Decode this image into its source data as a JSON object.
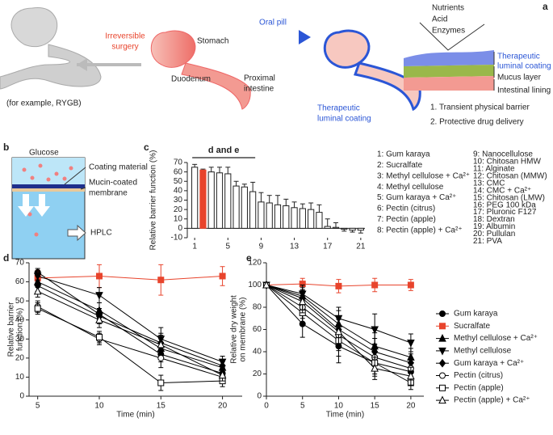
{
  "panel_a": {
    "label": "a",
    "irreversible_surgery": [
      "Irreversible",
      "surgery"
    ],
    "stomach": "Stomach",
    "oral_pill": "Oral pill",
    "duodenum": "Duodenum",
    "proximal_intestine": [
      "Proximal",
      "intestine"
    ],
    "example": "(for example, RYGB)",
    "coating_center": [
      "Therapeutic",
      "luminal coating"
    ],
    "nutrients": "Nutrients",
    "acid": "Acid",
    "enzymes": "Enzymes",
    "coating_right": [
      "Therapeutic",
      "luminal coating"
    ],
    "mucus": "Mucus layer",
    "lining": "Intestinal lining",
    "point1": "1. Transient physical barrier",
    "point2": "2. Protective drug delivery"
  },
  "panel_b": {
    "label": "b",
    "glucose": "Glucose",
    "coating": "Coating material",
    "membrane": [
      "Mucin-coated",
      "membrane"
    ],
    "hplc": "HPLC"
  },
  "chart_data": [
    {
      "type": "bar",
      "label": "c",
      "ylabel": "Relative barrier function (%)",
      "annotation": "d and e",
      "categories": [
        1,
        null,
        null,
        null,
        5,
        null,
        null,
        null,
        9,
        null,
        null,
        null,
        13,
        null,
        null,
        null,
        17,
        null,
        null,
        null,
        21
      ],
      "values": [
        65,
        62,
        60,
        59,
        58,
        45,
        44,
        39,
        28,
        27,
        25,
        24,
        22,
        21,
        20,
        17,
        2,
        1,
        -1,
        -2,
        -2
      ],
      "errors": [
        3,
        1,
        5,
        6,
        7,
        5,
        3,
        10,
        10,
        8,
        10,
        7,
        6,
        5,
        7,
        8,
        8,
        5,
        2,
        2,
        3
      ],
      "colors": [
        "#ffffff",
        "#e8442c",
        "#ffffff",
        "#ffffff",
        "#ffffff",
        "#ffffff",
        "#ffffff",
        "#ffffff",
        "#ffffff",
        "#ffffff",
        "#ffffff",
        "#ffffff",
        "#ffffff",
        "#ffffff",
        "#ffffff",
        "#ffffff",
        "#ffffff",
        "#ffffff",
        "#ffffff",
        "#ffffff",
        "#ffffff"
      ],
      "ylim": [
        -10,
        70
      ],
      "yticks": [
        -10,
        0,
        10,
        20,
        30,
        40,
        50,
        60,
        70
      ],
      "legend_items": [
        "1: Gum karaya",
        "2: Sucralfate",
        "3: Methyl cellulose + Ca²⁺",
        "4: Methyl cellulose",
        "5: Gum karaya + Ca²⁺",
        "6: Pectin (citrus)",
        "7: Pectin (apple)",
        "8: Pectin (apple) + Ca²⁺",
        "9: Nanocellulose",
        "10: Chitosan HMW",
        "11: Alginate",
        "12: Chitosan (MMW)",
        "13: CMC",
        "14: CMC + Ca²⁺",
        "15: Chitosan (LMW)",
        "16: PEG 100 kDa",
        "17: Pluronic F127",
        "18: Dextran",
        "19: Albumin",
        "20: Pullulan",
        "21: PVA"
      ]
    },
    {
      "type": "line",
      "label": "d",
      "ylabel": [
        "Relative barrier",
        "function (%)"
      ],
      "xlabel": "Time (min)",
      "x": [
        5,
        10,
        15,
        20
      ],
      "xlim": [
        4.3,
        21.6
      ],
      "xticks": [
        5,
        10,
        15,
        20
      ],
      "ylim": [
        0,
        70
      ],
      "yticks": [
        0,
        10,
        20,
        30,
        40,
        50,
        60,
        70
      ],
      "series": [
        {
          "color": "#000000",
          "marker": "circle",
          "filled": true,
          "values": [
            65,
            43,
            22,
            12
          ],
          "errors": [
            2,
            3,
            4,
            3
          ]
        },
        {
          "color": "#e8442c",
          "marker": "square",
          "filled": true,
          "values": [
            62,
            63,
            61,
            63
          ],
          "errors": [
            4,
            6,
            8,
            5
          ]
        },
        {
          "color": "#000000",
          "marker": "triangle",
          "filled": true,
          "values": [
            60,
            45,
            25,
            15
          ],
          "errors": [
            3,
            4,
            5,
            3
          ]
        },
        {
          "color": "#000000",
          "marker": "triangle-down",
          "filled": true,
          "values": [
            63,
            53,
            30,
            18
          ],
          "errors": [
            3,
            4,
            6,
            3
          ]
        },
        {
          "color": "#000000",
          "marker": "diamond",
          "filled": true,
          "values": [
            58,
            42,
            28,
            16
          ],
          "errors": [
            3,
            4,
            5,
            3
          ]
        },
        {
          "color": "#000000",
          "marker": "circle",
          "filled": false,
          "values": [
            47,
            30,
            20,
            10
          ],
          "errors": [
            3,
            3,
            5,
            3
          ]
        },
        {
          "color": "#000000",
          "marker": "square",
          "filled": false,
          "values": [
            46,
            31,
            7,
            8
          ],
          "errors": [
            3,
            3,
            4,
            3
          ]
        },
        {
          "color": "#000000",
          "marker": "triangle",
          "filled": false,
          "values": [
            55,
            40,
            27,
            11
          ],
          "errors": [
            3,
            4,
            5,
            3
          ]
        }
      ]
    },
    {
      "type": "line",
      "label": "e",
      "ylabel": [
        "Relative dry weight",
        "on membrane (%)"
      ],
      "xlabel": "Time (min)",
      "x": [
        0,
        5,
        10,
        15,
        20
      ],
      "xlim": [
        0,
        21.8
      ],
      "xticks": [
        0,
        5,
        10,
        15,
        20
      ],
      "ylim": [
        0,
        120
      ],
      "yticks": [
        0,
        20,
        40,
        60,
        80,
        100,
        120
      ],
      "series": [
        {
          "name": "Gum karaya",
          "color": "#000000",
          "marker": "circle",
          "filled": true,
          "values": [
            100,
            65,
            45,
            30,
            22
          ],
          "errors": [
            2,
            12,
            15,
            12,
            8
          ]
        },
        {
          "name": "Sucralfate",
          "color": "#e8442c",
          "marker": "square",
          "filled": true,
          "values": [
            100,
            101,
            99,
            100,
            100
          ],
          "errors": [
            2,
            5,
            6,
            6,
            5
          ]
        },
        {
          "name": "Methyl cellulose + Ca²⁺",
          "color": "#000000",
          "marker": "triangle",
          "filled": true,
          "values": [
            100,
            90,
            65,
            45,
            35
          ],
          "errors": [
            2,
            8,
            12,
            12,
            8
          ]
        },
        {
          "name": "Methyl cellulose",
          "color": "#000000",
          "marker": "triangle-down",
          "filled": true,
          "values": [
            100,
            92,
            70,
            60,
            48
          ],
          "errors": [
            2,
            8,
            10,
            14,
            8
          ]
        },
        {
          "name": "Gum karaya + Ca²⁺",
          "color": "#000000",
          "marker": "diamond",
          "filled": true,
          "values": [
            100,
            88,
            60,
            40,
            30
          ],
          "errors": [
            2,
            8,
            12,
            12,
            8
          ]
        },
        {
          "name": "Pectin (citrus)",
          "color": "#000000",
          "marker": "circle",
          "filled": false,
          "values": [
            100,
            80,
            55,
            35,
            25
          ],
          "errors": [
            2,
            10,
            14,
            12,
            8
          ]
        },
        {
          "name": "Pectin (apple)",
          "color": "#000000",
          "marker": "square",
          "filled": false,
          "values": [
            100,
            75,
            50,
            30,
            12
          ],
          "errors": [
            2,
            10,
            14,
            10,
            6
          ]
        },
        {
          "name": "Pectin (apple) + Ca²⁺",
          "color": "#000000",
          "marker": "triangle",
          "filled": false,
          "values": [
            100,
            85,
            58,
            25,
            18
          ],
          "errors": [
            2,
            10,
            12,
            10,
            8
          ]
        }
      ]
    }
  ]
}
